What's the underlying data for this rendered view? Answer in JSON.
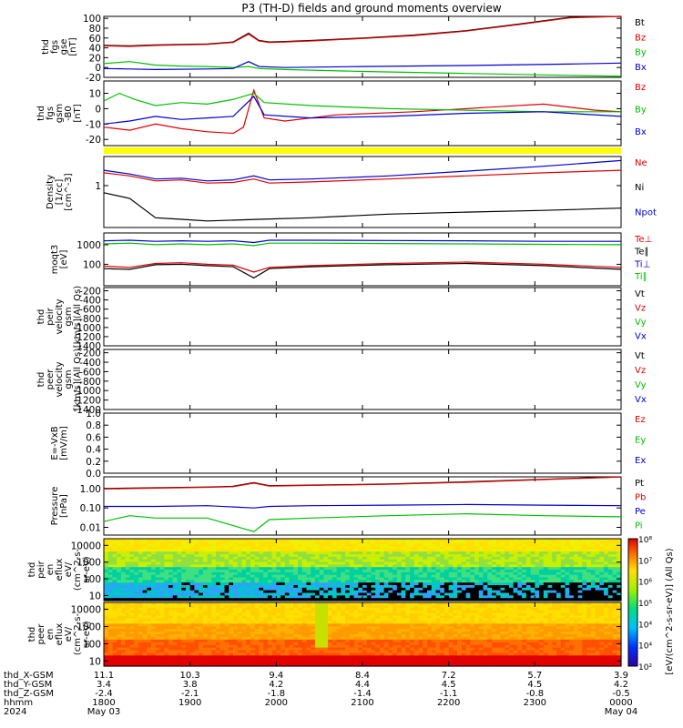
{
  "title": "P3 (TH-D) fields and ground moments overview",
  "colors": {
    "black": "#000000",
    "red": "#e00000",
    "green": "#00c000",
    "blue": "#0000d0",
    "yellow": "#ffff00"
  },
  "chart_data": [
    {
      "type": "line",
      "id": "fgs-gse",
      "ylabel": [
        "thd",
        "fgs",
        "gse",
        "[nT]"
      ],
      "yticks": [
        -20,
        0,
        20,
        40,
        60,
        80,
        100
      ],
      "ylim": [
        -20,
        104
      ],
      "series": [
        {
          "name": "Bt",
          "color": "#000000",
          "x": [
            0,
            0.05,
            0.1,
            0.15,
            0.2,
            0.25,
            0.28,
            0.3,
            0.32,
            0.35,
            0.4,
            0.5,
            0.6,
            0.7,
            0.8,
            0.9,
            1.0
          ],
          "y": [
            45,
            44,
            46,
            47,
            48,
            52,
            70,
            55,
            52,
            53,
            55,
            60,
            66,
            75,
            88,
            102,
            104
          ]
        },
        {
          "name": "Bz",
          "color": "#e00000",
          "x": [
            0,
            0.05,
            0.1,
            0.15,
            0.2,
            0.25,
            0.28,
            0.3,
            0.32,
            0.35,
            0.4,
            0.5,
            0.6,
            0.7,
            0.8,
            0.9,
            1.0
          ],
          "y": [
            44,
            43,
            45,
            46,
            47,
            51,
            68,
            54,
            51,
            52,
            54,
            59,
            65,
            74,
            87,
            101,
            104
          ]
        },
        {
          "name": "By",
          "color": "#00c000",
          "x": [
            0,
            0.05,
            0.1,
            0.15,
            0.2,
            0.25,
            0.28,
            0.3,
            0.35,
            0.5,
            0.7,
            0.9,
            1.0
          ],
          "y": [
            8,
            12,
            5,
            3,
            2,
            0,
            2,
            -2,
            -4,
            -8,
            -12,
            -16,
            -18
          ]
        },
        {
          "name": "Bx",
          "color": "#0000d0",
          "x": [
            0,
            0.05,
            0.1,
            0.2,
            0.25,
            0.28,
            0.3,
            0.35,
            0.5,
            0.7,
            0.9,
            1.0
          ],
          "y": [
            -2,
            -3,
            -4,
            -3,
            -2,
            12,
            2,
            0,
            2,
            4,
            7,
            9
          ]
        }
      ]
    },
    {
      "type": "line",
      "id": "fgs-gsm",
      "ylabel": [
        "thd",
        "fgs",
        "gsm",
        "-B0",
        "[nT]"
      ],
      "yticks": [
        -20,
        -10,
        0,
        10
      ],
      "ylim": [
        -24,
        18
      ],
      "series": [
        {
          "name": "Bz",
          "color": "#e00000",
          "x": [
            0,
            0.05,
            0.1,
            0.15,
            0.2,
            0.25,
            0.27,
            0.29,
            0.31,
            0.35,
            0.45,
            0.6,
            0.75,
            0.85,
            0.95,
            1.0
          ],
          "y": [
            -12,
            -14,
            -10,
            -13,
            -15,
            -16,
            -12,
            12,
            -6,
            -8,
            -4,
            -2,
            1,
            3,
            -1,
            -2
          ]
        },
        {
          "name": "By",
          "color": "#00c000",
          "x": [
            0,
            0.03,
            0.06,
            0.1,
            0.15,
            0.2,
            0.25,
            0.29,
            0.31,
            0.4,
            0.55,
            0.7,
            0.85,
            1.0
          ],
          "y": [
            5,
            10,
            6,
            2,
            4,
            3,
            6,
            10,
            4,
            2,
            0,
            -1,
            -2,
            -2
          ]
        },
        {
          "name": "Bx",
          "color": "#0000d0",
          "x": [
            0,
            0.05,
            0.1,
            0.15,
            0.2,
            0.25,
            0.29,
            0.31,
            0.4,
            0.55,
            0.7,
            0.85,
            1.0
          ],
          "y": [
            -10,
            -8,
            -5,
            -7,
            -6,
            -5,
            8,
            -4,
            -6,
            -5,
            -3,
            -2,
            -5
          ]
        }
      ]
    },
    {
      "type": "line",
      "id": "density",
      "log": true,
      "ylabel": [
        "Density",
        "[1/cc]",
        "[cm^-3]"
      ],
      "yticks": [
        1
      ],
      "yticklabels": [
        "1"
      ],
      "ylim": [
        0.05,
        8
      ],
      "series": [
        {
          "name": "Ne",
          "color": "#e00000",
          "x": [
            0,
            0.05,
            0.1,
            0.15,
            0.2,
            0.25,
            0.29,
            0.32,
            0.4,
            0.55,
            0.7,
            0.85,
            1.0
          ],
          "y": [
            2.5,
            2,
            1.4,
            1.5,
            1.2,
            1.25,
            1.6,
            1.2,
            1.3,
            1.6,
            2,
            2.5,
            3
          ]
        },
        {
          "name": "Ni",
          "color": "#000000",
          "x": [
            0,
            0.05,
            0.1,
            0.15,
            0.2,
            0.3,
            0.4,
            0.55,
            0.7,
            0.85,
            1.0
          ],
          "y": [
            0.6,
            0.4,
            0.1,
            0.09,
            0.08,
            0.09,
            0.1,
            0.13,
            0.15,
            0.17,
            0.2
          ]
        },
        {
          "name": "Npot",
          "color": "#0000d0",
          "x": [
            0,
            0.05,
            0.1,
            0.15,
            0.2,
            0.25,
            0.29,
            0.32,
            0.4,
            0.55,
            0.7,
            0.85,
            1.0
          ],
          "y": [
            3,
            2.3,
            1.6,
            1.7,
            1.4,
            1.5,
            2,
            1.5,
            1.6,
            2,
            2.8,
            4,
            6
          ]
        }
      ]
    },
    {
      "type": "line",
      "id": "temperature",
      "log": true,
      "ylabel": [
        "moqt3",
        "[eV]"
      ],
      "yticks": [
        100,
        1000
      ],
      "yticklabels": [
        "100",
        "1000"
      ],
      "ylim": [
        8,
        4000
      ],
      "series": [
        {
          "name": "Te⊥",
          "color": "#e00000",
          "x": [
            0,
            0.05,
            0.1,
            0.15,
            0.2,
            0.25,
            0.29,
            0.32,
            0.4,
            0.55,
            0.7,
            0.85,
            1.0
          ],
          "y": [
            80,
            70,
            110,
            120,
            100,
            90,
            40,
            70,
            85,
            110,
            130,
            100,
            70
          ]
        },
        {
          "name": "Te∥",
          "color": "#000000",
          "x": [
            0,
            0.05,
            0.1,
            0.15,
            0.2,
            0.25,
            0.29,
            0.32,
            0.4,
            0.55,
            0.7,
            0.85,
            1.0
          ],
          "y": [
            60,
            55,
            95,
            100,
            85,
            75,
            20,
            60,
            75,
            95,
            110,
            85,
            55
          ]
        },
        {
          "name": "Ti⊥",
          "color": "#0000d0",
          "x": [
            0,
            0.05,
            0.1,
            0.15,
            0.2,
            0.25,
            0.29,
            0.32,
            0.4,
            0.55,
            0.7,
            0.85,
            1.0
          ],
          "y": [
            1600,
            1700,
            1500,
            1600,
            1500,
            1600,
            1300,
            1700,
            1700,
            1650,
            1600,
            1500,
            1500
          ]
        },
        {
          "name": "Ti∥",
          "color": "#00c000",
          "x": [
            0,
            0.05,
            0.1,
            0.15,
            0.2,
            0.25,
            0.29,
            0.32,
            0.4,
            0.55,
            0.7,
            0.85,
            1.0
          ],
          "y": [
            1100,
            1200,
            1000,
            1100,
            1000,
            1100,
            900,
            1200,
            1200,
            1150,
            1100,
            1050,
            1000
          ]
        }
      ]
    },
    {
      "type": "line",
      "id": "peir-velocity",
      "ylabel": [
        "thd",
        "peir",
        "velocity",
        "gsm",
        "[km/s](All Qs)"
      ],
      "yticks": [
        -1400,
        -1200,
        -1000,
        -800,
        -600,
        -400,
        -200
      ],
      "ylim": [
        -1400,
        -130
      ],
      "series": [
        {
          "name": "Vt",
          "color": "#000000",
          "x": [],
          "y": []
        },
        {
          "name": "Vz",
          "color": "#e00000",
          "x": [],
          "y": []
        },
        {
          "name": "Vy",
          "color": "#00c000",
          "x": [],
          "y": []
        },
        {
          "name": "Vx",
          "color": "#0000d0",
          "x": [],
          "y": []
        }
      ]
    },
    {
      "type": "line",
      "id": "peer-velocity",
      "ylabel": [
        "thd",
        "peer",
        "velocity",
        "gsm",
        "[km/s](All Qs)"
      ],
      "yticks": [
        -1400,
        -1200,
        -1000,
        -800,
        -600,
        -400,
        -200
      ],
      "ylim": [
        -1400,
        -130
      ],
      "series": [
        {
          "name": "Vt",
          "color": "#000000",
          "x": [],
          "y": []
        },
        {
          "name": "Vz",
          "color": "#e00000",
          "x": [],
          "y": []
        },
        {
          "name": "Vy",
          "color": "#00c000",
          "x": [],
          "y": []
        },
        {
          "name": "Vx",
          "color": "#0000d0",
          "x": [],
          "y": []
        }
      ]
    },
    {
      "type": "line",
      "id": "efield",
      "ylabel": [
        "E=-VxB",
        "[mV/m]"
      ],
      "yticks": [
        0.0,
        0.2,
        0.4,
        0.6,
        0.8,
        1.0
      ],
      "yticklabels": [
        "0.0",
        "0.2",
        "0.4",
        "0.6",
        "0.8",
        "1.0"
      ],
      "ylim": [
        0,
        1.0
      ],
      "series": [
        {
          "name": "Ez",
          "color": "#e00000",
          "x": [],
          "y": []
        },
        {
          "name": "Ey",
          "color": "#00c000",
          "x": [],
          "y": []
        },
        {
          "name": "Ex",
          "color": "#0000d0",
          "x": [],
          "y": []
        }
      ]
    },
    {
      "type": "line",
      "id": "pressure",
      "log": true,
      "ylabel": [
        "Pressure",
        "[nPa]"
      ],
      "yticks": [
        0.01,
        0.1,
        1
      ],
      "yticklabels": [
        "0.01",
        "0.10",
        "1.00"
      ],
      "ylim": [
        0.004,
        4
      ],
      "series": [
        {
          "name": "Pt",
          "color": "#000000",
          "x": [
            0,
            0.1,
            0.2,
            0.25,
            0.29,
            0.32,
            0.4,
            0.55,
            0.7,
            0.85,
            1.0
          ],
          "y": [
            1.0,
            1.1,
            1.2,
            1.3,
            2.0,
            1.4,
            1.5,
            1.7,
            2.2,
            3,
            4
          ]
        },
        {
          "name": "Pb",
          "color": "#e00000",
          "x": [
            0,
            0.1,
            0.2,
            0.25,
            0.29,
            0.32,
            0.4,
            0.55,
            0.7,
            0.85,
            1.0
          ],
          "y": [
            0.95,
            1.05,
            1.15,
            1.25,
            1.9,
            1.35,
            1.45,
            1.65,
            2.1,
            2.9,
            3.9
          ]
        },
        {
          "name": "Pe",
          "color": "#0000d0",
          "x": [
            0,
            0.1,
            0.2,
            0.29,
            0.32,
            0.4,
            0.55,
            0.7,
            0.85,
            1.0
          ],
          "y": [
            0.12,
            0.12,
            0.13,
            0.1,
            0.12,
            0.13,
            0.14,
            0.15,
            0.14,
            0.13
          ]
        },
        {
          "name": "Pi",
          "color": "#00c000",
          "x": [
            0,
            0.05,
            0.1,
            0.2,
            0.29,
            0.32,
            0.4,
            0.55,
            0.7,
            0.85,
            1.0
          ],
          "y": [
            0.02,
            0.04,
            0.03,
            0.03,
            0.006,
            0.025,
            0.03,
            0.04,
            0.05,
            0.04,
            0.035
          ]
        }
      ]
    },
    {
      "type": "heatmap",
      "id": "peir-eflux",
      "ylabel": [
        "thd",
        "peir",
        "en",
        "eflux",
        "eV/",
        "(cm^2-s-",
        "sr-eV)"
      ],
      "yticks": [
        10,
        100,
        1000,
        10000
      ],
      "yticklabels": [
        "10",
        "100",
        "1000",
        "10000"
      ],
      "ylim": [
        5,
        25000
      ]
    },
    {
      "type": "heatmap",
      "id": "peer-eflux",
      "ylabel": [
        "thd",
        "peer",
        "en",
        "eflux",
        "eV/",
        "(cm^2-s-",
        "sr-eV)"
      ],
      "yticks": [
        10,
        100,
        1000,
        10000
      ],
      "yticklabels": [
        "10",
        "100",
        "1000",
        "10000"
      ],
      "ylim": [
        5,
        25000
      ]
    }
  ],
  "colorbar": {
    "ticks": [
      "10²",
      "10⁴",
      "10⁴",
      "10⁵",
      "10⁶",
      "10⁷",
      "10⁸"
    ],
    "label": "[eV/(cm^2-s-sr-eV)] (All Qs)"
  },
  "xaxis": {
    "rows": [
      {
        "label": "thd_X-GSM",
        "values": [
          "11.1",
          "10.3",
          "9.4",
          "8.4",
          "7.2",
          "5.7",
          "3.9"
        ]
      },
      {
        "label": "thd_Y-GSM",
        "values": [
          "3.4",
          "3.8",
          "4.2",
          "4.4",
          "4.5",
          "4.5",
          "4.2"
        ]
      },
      {
        "label": "thd_Z-GSM",
        "values": [
          "-2.4",
          "-2.1",
          "-1.8",
          "-1.4",
          "-1.1",
          "-0.8",
          "-0.5"
        ]
      },
      {
        "label": "hhmm",
        "values": [
          "1800",
          "1900",
          "2000",
          "2100",
          "2200",
          "2300",
          "0000"
        ]
      },
      {
        "label": "2024",
        "values": [
          "May 03",
          "",
          "",
          "",
          "",
          "",
          "May 04"
        ]
      }
    ]
  }
}
